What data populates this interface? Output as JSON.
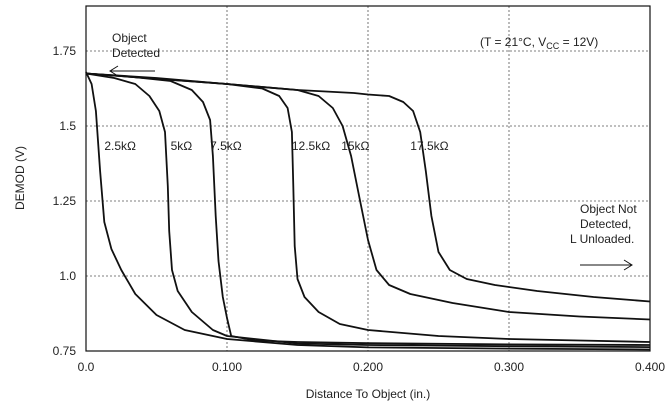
{
  "chart_data": {
    "type": "line",
    "xlabel": "Distance To Object (in.)",
    "ylabel": "DEMOD (V)",
    "xlim": [
      0,
      0.4
    ],
    "ylim": [
      0.75,
      1.9
    ],
    "x_ticks": [
      "0.0",
      "0.100",
      "0.200",
      "0.300",
      "0.400"
    ],
    "y_ticks": [
      "0.75",
      "1.0",
      "1.25",
      "1.5",
      "1.75"
    ],
    "grid": true,
    "annotations": {
      "condition_prefix": "(T = 21°C, V",
      "condition_sub": "CC",
      "condition_suffix": " = 12V)",
      "detected_line1": "Object",
      "detected_line2": "Detected",
      "not_detected_line1": "Object Not",
      "not_detected_line2": "Detected,",
      "not_detected_line3": "L Unloaded."
    },
    "series": [
      {
        "name": "2.5kΩ",
        "label_at": [
          0.013,
          1.42
        ],
        "points": [
          [
            0,
            1.68
          ],
          [
            0.004,
            1.64
          ],
          [
            0.007,
            1.55
          ],
          [
            0.01,
            1.35
          ],
          [
            0.013,
            1.18
          ],
          [
            0.018,
            1.09
          ],
          [
            0.025,
            1.02
          ],
          [
            0.035,
            0.94
          ],
          [
            0.05,
            0.87
          ],
          [
            0.07,
            0.82
          ],
          [
            0.1,
            0.79
          ],
          [
            0.15,
            0.77
          ],
          [
            0.2,
            0.762
          ],
          [
            0.3,
            0.758
          ],
          [
            0.4,
            0.755
          ]
        ]
      },
      {
        "name": "5kΩ",
        "label_at": [
          0.06,
          1.42
        ],
        "points": [
          [
            0,
            1.675
          ],
          [
            0.02,
            1.66
          ],
          [
            0.035,
            1.64
          ],
          [
            0.045,
            1.6
          ],
          [
            0.052,
            1.55
          ],
          [
            0.056,
            1.48
          ],
          [
            0.058,
            1.3
          ],
          [
            0.059,
            1.15
          ],
          [
            0.061,
            1.02
          ],
          [
            0.065,
            0.95
          ],
          [
            0.075,
            0.88
          ],
          [
            0.09,
            0.82
          ],
          [
            0.1,
            0.8
          ],
          [
            0.15,
            0.775
          ],
          [
            0.2,
            0.77
          ],
          [
            0.3,
            0.766
          ],
          [
            0.4,
            0.763
          ]
        ]
      },
      {
        "name": "7.5kΩ",
        "label_at": [
          0.088,
          1.42
        ],
        "points": [
          [
            0,
            1.675
          ],
          [
            0.03,
            1.665
          ],
          [
            0.06,
            1.65
          ],
          [
            0.075,
            1.62
          ],
          [
            0.083,
            1.58
          ],
          [
            0.088,
            1.52
          ],
          [
            0.09,
            1.4
          ],
          [
            0.092,
            1.2
          ],
          [
            0.094,
            1.05
          ],
          [
            0.097,
            0.93
          ],
          [
            0.1,
            0.86
          ],
          [
            0.103,
            0.8
          ],
          [
            0.12,
            0.785
          ],
          [
            0.15,
            0.78
          ],
          [
            0.2,
            0.776
          ],
          [
            0.3,
            0.772
          ],
          [
            0.4,
            0.77
          ]
        ]
      },
      {
        "name": "12.5kΩ",
        "label_at": [
          0.146,
          1.42
        ],
        "points": [
          [
            0,
            1.675
          ],
          [
            0.05,
            1.66
          ],
          [
            0.1,
            1.64
          ],
          [
            0.125,
            1.625
          ],
          [
            0.137,
            1.6
          ],
          [
            0.143,
            1.56
          ],
          [
            0.146,
            1.48
          ],
          [
            0.147,
            1.3
          ],
          [
            0.148,
            1.1
          ],
          [
            0.15,
            0.99
          ],
          [
            0.155,
            0.93
          ],
          [
            0.165,
            0.88
          ],
          [
            0.18,
            0.84
          ],
          [
            0.2,
            0.82
          ],
          [
            0.25,
            0.8
          ],
          [
            0.3,
            0.79
          ],
          [
            0.35,
            0.785
          ],
          [
            0.4,
            0.78
          ]
        ]
      },
      {
        "name": "15kΩ",
        "label_at": [
          0.181,
          1.42
        ],
        "points": [
          [
            0,
            1.675
          ],
          [
            0.1,
            1.64
          ],
          [
            0.15,
            1.62
          ],
          [
            0.165,
            1.6
          ],
          [
            0.175,
            1.56
          ],
          [
            0.182,
            1.5
          ],
          [
            0.188,
            1.4
          ],
          [
            0.194,
            1.26
          ],
          [
            0.2,
            1.12
          ],
          [
            0.206,
            1.02
          ],
          [
            0.215,
            0.97
          ],
          [
            0.23,
            0.94
          ],
          [
            0.26,
            0.91
          ],
          [
            0.3,
            0.88
          ],
          [
            0.35,
            0.865
          ],
          [
            0.4,
            0.855
          ]
        ]
      },
      {
        "name": "17.5kΩ",
        "label_at": [
          0.23,
          1.42
        ],
        "points": [
          [
            0,
            1.675
          ],
          [
            0.1,
            1.64
          ],
          [
            0.15,
            1.62
          ],
          [
            0.19,
            1.61
          ],
          [
            0.2,
            1.605
          ],
          [
            0.215,
            1.6
          ],
          [
            0.225,
            1.58
          ],
          [
            0.232,
            1.55
          ],
          [
            0.237,
            1.48
          ],
          [
            0.241,
            1.35
          ],
          [
            0.245,
            1.2
          ],
          [
            0.25,
            1.08
          ],
          [
            0.258,
            1.02
          ],
          [
            0.27,
            0.99
          ],
          [
            0.29,
            0.97
          ],
          [
            0.32,
            0.95
          ],
          [
            0.36,
            0.93
          ],
          [
            0.4,
            0.915
          ]
        ]
      }
    ]
  }
}
